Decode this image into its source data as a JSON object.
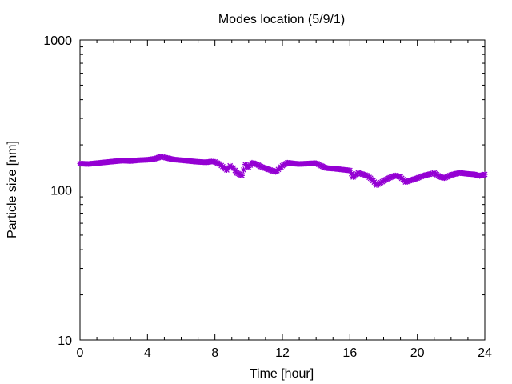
{
  "chart_data": {
    "type": "scatter",
    "title": "Modes location (5/9/1)",
    "xlabel": "Time [hour]",
    "ylabel": "Particle size [nm]",
    "xlim": [
      0,
      24
    ],
    "ylim": [
      10,
      1000
    ],
    "yscale": "log",
    "xticks": [
      {
        "value": 0,
        "label": "0"
      },
      {
        "value": 4,
        "label": "4"
      },
      {
        "value": 8,
        "label": "8"
      },
      {
        "value": 12,
        "label": "12"
      },
      {
        "value": 16,
        "label": "16"
      },
      {
        "value": 20,
        "label": "20"
      },
      {
        "value": 24,
        "label": "24"
      }
    ],
    "yticks": [
      {
        "value": 10,
        "label": "10"
      },
      {
        "value": 100,
        "label": "100"
      },
      {
        "value": 1000,
        "label": "1000"
      }
    ],
    "grid": false,
    "marker_color": "#9400d3",
    "series": [
      {
        "x": [
          0,
          0.5,
          1,
          1.5,
          2,
          2.5,
          3,
          3.5,
          4,
          4.5,
          4.8,
          5,
          5.5,
          6,
          6.5,
          7,
          7.5,
          7.8,
          8,
          8.3,
          8.7,
          8.9,
          9.1,
          9.3,
          9.6,
          9.8,
          10,
          10.2,
          10.5,
          10.8,
          11.2,
          11.6,
          12,
          12.3,
          12.7,
          13,
          13.5,
          14,
          14.3,
          14.6,
          15,
          15.5,
          16,
          16.2,
          16.5,
          17,
          17.3,
          17.6,
          18,
          18.3,
          18.7,
          19,
          19.3,
          19.7,
          20,
          20.4,
          20.8,
          21,
          21.3,
          21.6,
          22,
          22.5,
          23,
          23.4,
          23.7,
          24
        ],
        "y": [
          150,
          149,
          151,
          153,
          155,
          157,
          156,
          158,
          159,
          162,
          167,
          165,
          160,
          158,
          156,
          154,
          153,
          155,
          154,
          148,
          136,
          145,
          140,
          130,
          125,
          148,
          141,
          152,
          148,
          142,
          137,
          132,
          145,
          152,
          150,
          149,
          150,
          151,
          145,
          140,
          139,
          137,
          135,
          122,
          130,
          125,
          118,
          108,
          115,
          120,
          125,
          122,
          113,
          117,
          120,
          125,
          128,
          130,
          123,
          120,
          126,
          130,
          128,
          127,
          124,
          127
        ]
      }
    ]
  }
}
